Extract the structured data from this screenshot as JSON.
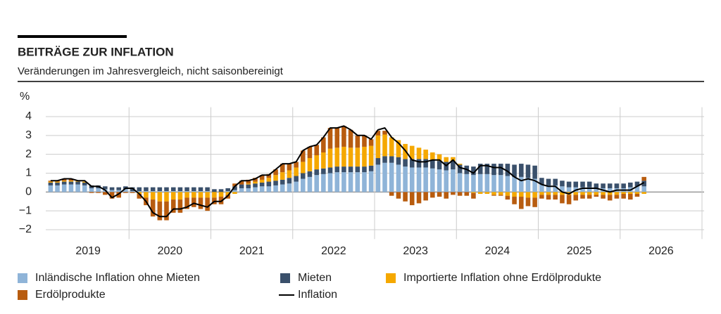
{
  "chart_data": {
    "type": "stacked-bar-line",
    "title": "BEITRÄGE ZUR INFLATION",
    "subtitle": "Veränderungen im Jahresvergleich, nicht saisonbereinigt",
    "y_unit": "%",
    "xlim": [
      2019,
      2027
    ],
    "xticks": [
      {
        "value": 2019.5,
        "label": "2019"
      },
      {
        "value": 2020.5,
        "label": "2020"
      },
      {
        "value": 2021.5,
        "label": "2021"
      },
      {
        "value": 2022.5,
        "label": "2022"
      },
      {
        "value": 2023.5,
        "label": "2023"
      },
      {
        "value": 2024.5,
        "label": "2024"
      },
      {
        "value": 2025.5,
        "label": "2025"
      },
      {
        "value": 2026.5,
        "label": "2026"
      }
    ],
    "ylim": [
      -2.5,
      4.5
    ],
    "yticks": [
      {
        "value": -2,
        "label": "−2"
      },
      {
        "value": -1,
        "label": "−1"
      },
      0,
      1,
      2,
      3,
      4
    ],
    "grid": true,
    "x": [
      2019.042,
      2019.125,
      2019.208,
      2019.292,
      2019.375,
      2019.458,
      2019.542,
      2019.625,
      2019.708,
      2019.792,
      2019.875,
      2019.958,
      2020.042,
      2020.125,
      2020.208,
      2020.292,
      2020.375,
      2020.458,
      2020.542,
      2020.625,
      2020.708,
      2020.792,
      2020.875,
      2020.958,
      2021.042,
      2021.125,
      2021.208,
      2021.292,
      2021.375,
      2021.458,
      2021.542,
      2021.625,
      2021.708,
      2021.792,
      2021.875,
      2021.958,
      2022.042,
      2022.125,
      2022.208,
      2022.292,
      2022.375,
      2022.458,
      2022.542,
      2022.625,
      2022.708,
      2022.792,
      2022.875,
      2022.958,
      2023.042,
      2023.125,
      2023.208,
      2023.292,
      2023.375,
      2023.458,
      2023.542,
      2023.625,
      2023.708,
      2023.792,
      2023.875,
      2023.958,
      2024.042,
      2024.125,
      2024.208,
      2024.292,
      2024.375,
      2024.458,
      2024.542,
      2024.625,
      2024.708,
      2024.792,
      2024.875,
      2024.958,
      2025.042,
      2025.125,
      2025.208,
      2025.292,
      2025.375,
      2025.458,
      2025.542,
      2025.625,
      2025.708,
      2025.792,
      2025.875,
      2025.958,
      2026.042,
      2026.125,
      2026.208,
      2026.292
    ],
    "series": [
      {
        "name": "Inländische Inflation ohne Mieten",
        "color": "#8fb4d8",
        "values": [
          0.35,
          0.35,
          0.4,
          0.4,
          0.4,
          0.35,
          0.2,
          0.2,
          0.15,
          0.1,
          0.1,
          0.15,
          0.05,
          0.05,
          0.05,
          0.05,
          0.05,
          0.05,
          0.05,
          0.05,
          0.05,
          0.05,
          0.05,
          0.05,
          0,
          0,
          0.05,
          0.1,
          0.2,
          0.2,
          0.25,
          0.3,
          0.3,
          0.35,
          0.4,
          0.45,
          0.55,
          0.7,
          0.8,
          0.9,
          0.95,
          1.0,
          1.05,
          1.05,
          1.05,
          1.05,
          1.05,
          1.1,
          1.45,
          1.55,
          1.55,
          1.45,
          1.35,
          1.3,
          1.3,
          1.3,
          1.25,
          1.2,
          1.15,
          1.2,
          1.0,
          0.95,
          0.9,
          0.95,
          0.95,
          0.9,
          0.9,
          0.85,
          0.8,
          0.8,
          0.75,
          0.7,
          0.4,
          0.35,
          0.35,
          0.3,
          0.25,
          0.25,
          0.25,
          0.25,
          0.2,
          0.2,
          0.2,
          0.2,
          0.2,
          0.25,
          0.3,
          0.3
        ]
      },
      {
        "name": "Mieten",
        "color": "#3a506b",
        "values": [
          0.15,
          0.15,
          0.15,
          0.15,
          0.15,
          0.15,
          0.15,
          0.15,
          0.15,
          0.15,
          0.15,
          0.15,
          0.2,
          0.2,
          0.2,
          0.2,
          0.2,
          0.2,
          0.2,
          0.2,
          0.2,
          0.2,
          0.2,
          0.2,
          0.15,
          0.15,
          0.15,
          0.2,
          0.2,
          0.2,
          0.2,
          0.2,
          0.25,
          0.25,
          0.25,
          0.3,
          0.3,
          0.3,
          0.3,
          0.3,
          0.3,
          0.3,
          0.3,
          0.3,
          0.3,
          0.3,
          0.3,
          0.3,
          0.35,
          0.35,
          0.35,
          0.4,
          0.4,
          0.45,
          0.45,
          0.45,
          0.45,
          0.45,
          0.45,
          0.45,
          0.45,
          0.45,
          0.45,
          0.55,
          0.55,
          0.6,
          0.6,
          0.65,
          0.65,
          0.7,
          0.7,
          0.7,
          0.35,
          0.35,
          0.35,
          0.3,
          0.3,
          0.3,
          0.3,
          0.3,
          0.25,
          0.25,
          0.25,
          0.25,
          0.25,
          0.25,
          0.25,
          0.3
        ]
      },
      {
        "name": "Importierte Inflation ohne Erdölprodukte",
        "color": "#f5a800",
        "values": [
          0.05,
          0.05,
          0.05,
          0.05,
          0.05,
          0.05,
          0,
          0,
          0,
          0,
          0,
          0,
          0,
          -0.1,
          -0.3,
          -0.4,
          -0.5,
          -0.5,
          -0.4,
          -0.4,
          -0.3,
          -0.3,
          -0.3,
          -0.3,
          -0.3,
          -0.25,
          -0.15,
          -0.1,
          0,
          0.05,
          0.1,
          0.15,
          0.2,
          0.3,
          0.4,
          0.4,
          0.45,
          0.6,
          0.7,
          0.75,
          0.85,
          1.0,
          1.0,
          1.05,
          1.0,
          1.0,
          1.05,
          1.05,
          1.2,
          1.15,
          1.0,
          0.9,
          0.8,
          0.7,
          0.6,
          0.5,
          0.4,
          0.35,
          0.25,
          0.2,
          0.05,
          0,
          -0.05,
          -0.1,
          -0.1,
          -0.15,
          -0.15,
          -0.2,
          -0.25,
          -0.25,
          -0.3,
          -0.3,
          -0.15,
          -0.15,
          -0.15,
          -0.15,
          -0.15,
          -0.15,
          -0.15,
          -0.15,
          -0.15,
          -0.15,
          -0.15,
          -0.15,
          -0.1,
          -0.1,
          -0.1,
          -0.1
        ]
      },
      {
        "name": "Erdölprodukte",
        "color": "#b85c0f",
        "values": [
          0.05,
          0.05,
          0.1,
          0.1,
          0,
          0,
          -0.05,
          -0.05,
          -0.15,
          -0.35,
          -0.3,
          -0.05,
          -0.05,
          -0.25,
          -0.4,
          -0.9,
          -1.0,
          -1.0,
          -0.7,
          -0.7,
          -0.6,
          -0.5,
          -0.6,
          -0.7,
          -0.35,
          -0.4,
          -0.2,
          0.15,
          0.2,
          0.2,
          0.2,
          0.25,
          0.2,
          0.3,
          0.45,
          0.35,
          0.3,
          0.6,
          0.6,
          0.55,
          0.8,
          1.1,
          1.05,
          1.1,
          0.95,
          0.65,
          0.6,
          0.35,
          0.25,
          0.2,
          -0.2,
          -0.35,
          -0.5,
          -0.7,
          -0.6,
          -0.45,
          -0.3,
          -0.25,
          -0.35,
          -0.15,
          -0.2,
          -0.2,
          -0.3,
          0,
          0,
          -0.05,
          -0.05,
          -0.2,
          -0.4,
          -0.65,
          -0.45,
          -0.5,
          -0.2,
          -0.25,
          -0.25,
          -0.45,
          -0.5,
          -0.3,
          -0.2,
          -0.2,
          -0.1,
          -0.2,
          -0.3,
          -0.2,
          -0.25,
          -0.3,
          -0.15,
          0.2
        ]
      }
    ],
    "line": {
      "name": "Inflation",
      "color": "#000000",
      "values": [
        0.6,
        0.6,
        0.7,
        0.7,
        0.6,
        0.6,
        0.3,
        0.3,
        0.1,
        -0.3,
        -0.1,
        0.2,
        0.2,
        -0.1,
        -0.5,
        -1.1,
        -1.3,
        -1.3,
        -0.9,
        -0.9,
        -0.8,
        -0.6,
        -0.7,
        -0.8,
        -0.5,
        -0.5,
        -0.2,
        0.3,
        0.6,
        0.6,
        0.7,
        0.9,
        0.9,
        1.2,
        1.5,
        1.5,
        1.6,
        2.2,
        2.4,
        2.5,
        2.9,
        3.4,
        3.4,
        3.5,
        3.3,
        3.0,
        3.0,
        2.8,
        3.3,
        3.4,
        2.9,
        2.6,
        2.2,
        1.7,
        1.6,
        1.6,
        1.7,
        1.7,
        1.4,
        1.7,
        1.3,
        1.2,
        1.0,
        1.4,
        1.4,
        1.3,
        1.3,
        1.1,
        0.8,
        0.6,
        0.7,
        0.6,
        0.4,
        0.3,
        0.3,
        0.0,
        -0.1,
        0.1,
        0.2,
        0.2,
        0.2,
        0.1,
        0.0,
        0.1,
        0.1,
        0.1,
        0.3,
        0.5
      ]
    }
  }
}
